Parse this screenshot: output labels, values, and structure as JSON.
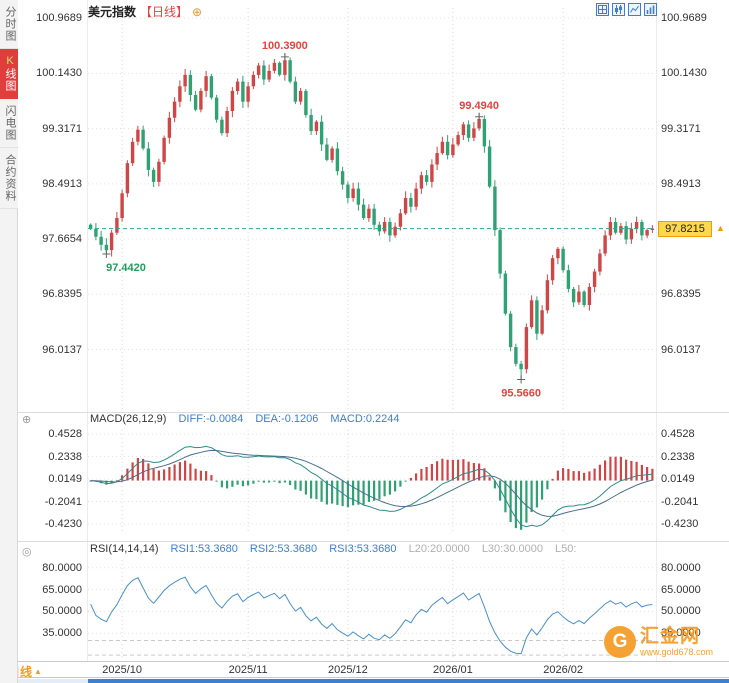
{
  "icons": {
    "plus_circle": "⊕",
    "triangle_up": "▲",
    "target_circle": "◎"
  },
  "sidebar": {
    "tabs": [
      {
        "name": "sidebar-tab-time-chart",
        "label": "分时图",
        "active": false
      },
      {
        "name": "sidebar-tab-kline-chart",
        "label": "K线图",
        "active": true,
        "accent_first": true
      },
      {
        "name": "sidebar-tab-flash-chart",
        "label": "闪电图",
        "active": false
      },
      {
        "name": "sidebar-tab-contract-info",
        "label": "合约资料",
        "active": false
      }
    ]
  },
  "header": {
    "title": "美元指数",
    "interval": "【日线】"
  },
  "toolbar": {
    "icons": [
      "layout-grid-icon",
      "candlestick-chart-icon",
      "line-chart-icon",
      "bar-chart-icon"
    ]
  },
  "bottom": {
    "interval_label": "日线"
  },
  "watermark": {
    "logo_letter": "G",
    "name": "汇金网",
    "url": "www.gold678.com"
  },
  "chart_data": {
    "type": "candlestick",
    "symbol": "美元指数",
    "interval": "日线",
    "price_axis": {
      "ticks": [
        "100.9689",
        "100.1430",
        "99.3171",
        "98.4913",
        "97.6654",
        "96.8395",
        "96.0137"
      ],
      "range": [
        95.08,
        101.12
      ]
    },
    "x_axis": {
      "labels": [
        "2025/10",
        "2025/11",
        "2025/12",
        "2026/01",
        "2026/02"
      ],
      "indices": [
        6,
        30,
        49,
        69,
        90
      ]
    },
    "candles": {
      "closes": [
        97.82,
        97.7,
        97.58,
        97.5,
        97.76,
        97.98,
        98.35,
        98.8,
        99.12,
        99.3,
        99.02,
        98.7,
        98.52,
        98.82,
        99.18,
        99.48,
        99.72,
        99.95,
        100.12,
        99.82,
        99.6,
        99.88,
        100.1,
        99.78,
        99.45,
        99.25,
        99.58,
        99.88,
        100.02,
        99.72,
        99.95,
        100.12,
        100.26,
        100.05,
        100.18,
        100.3,
        100.12,
        100.34,
        100.02,
        99.72,
        99.88,
        99.52,
        99.28,
        99.42,
        99.08,
        98.85,
        99.02,
        98.68,
        98.48,
        98.28,
        98.42,
        98.18,
        97.98,
        98.12,
        97.88,
        97.78,
        97.92,
        97.72,
        97.85,
        98.05,
        98.28,
        98.15,
        98.42,
        98.62,
        98.52,
        98.78,
        98.95,
        99.12,
        98.92,
        99.08,
        99.22,
        99.38,
        99.18,
        99.32,
        99.46,
        99.05,
        98.45,
        97.8,
        97.15,
        96.55,
        96.05,
        95.8,
        95.72,
        96.35,
        96.75,
        96.25,
        96.6,
        97.05,
        97.38,
        97.52,
        97.2,
        96.92,
        96.72,
        96.88,
        96.68,
        96.95,
        97.18,
        97.45,
        97.72,
        97.92,
        97.76,
        97.86,
        97.66,
        97.82,
        97.92,
        97.72,
        97.8,
        97.8215
      ]
    },
    "last_price": 97.8215,
    "last_price_label": "97.8215",
    "annotations": [
      {
        "index": 3,
        "price": 97.442,
        "label": "97.4420",
        "position": "below",
        "color": "#1ea05c"
      },
      {
        "index": 37,
        "price": 100.39,
        "label": "100.3900",
        "position": "above",
        "color": "#e2453d"
      },
      {
        "index": 74,
        "price": 99.494,
        "label": "99.4940",
        "position": "above",
        "color": "#e2453d"
      },
      {
        "index": 82,
        "price": 95.566,
        "label": "95.5660",
        "position": "below",
        "color": "#e2453d"
      }
    ],
    "macd": {
      "legend": {
        "name": "MACD(26,12,9)",
        "diff": "DIFF:-0.0084",
        "dea": "DEA:-0.1206",
        "macd": "MACD:0.2244"
      },
      "params": [
        26,
        12,
        9
      ],
      "ticks": [
        "0.4528",
        "0.2338",
        "0.0149",
        "-0.2041",
        "-0.4230"
      ],
      "range": [
        -0.52,
        0.492
      ]
    },
    "rsi": {
      "legend": {
        "name": "RSI(14,14,14)",
        "r1": "RSI1:53.3680",
        "r2": "RSI2:53.3680",
        "r3": "RSI3:53.3680",
        "l20": "L20:20.0000",
        "l30": "L30:30.0000",
        "l50": "L50:"
      },
      "period": 14,
      "ticks": [
        "80.0000",
        "65.0000",
        "50.0000",
        "35.0000"
      ],
      "tick_values": [
        80,
        65,
        50,
        35
      ],
      "level_lines": [
        20,
        30
      ],
      "range": [
        18,
        85.3
      ]
    },
    "colors": {
      "up": "#cf4646",
      "down": "#2fa173",
      "grid": "#e3e3e3",
      "month_grid": "#d9d9d9",
      "last_price_line": "#26a69a",
      "badge_bg": "#ffd84f",
      "badge_border": "#f59a00",
      "diff_line": "#2e8b8b",
      "dea_line": "#4a6f8a",
      "rsi_line": "#4a90c9",
      "axis_text": "#333333",
      "legend_blue": "#3b7fd0",
      "legend_gray": "#b0b0b0"
    }
  }
}
